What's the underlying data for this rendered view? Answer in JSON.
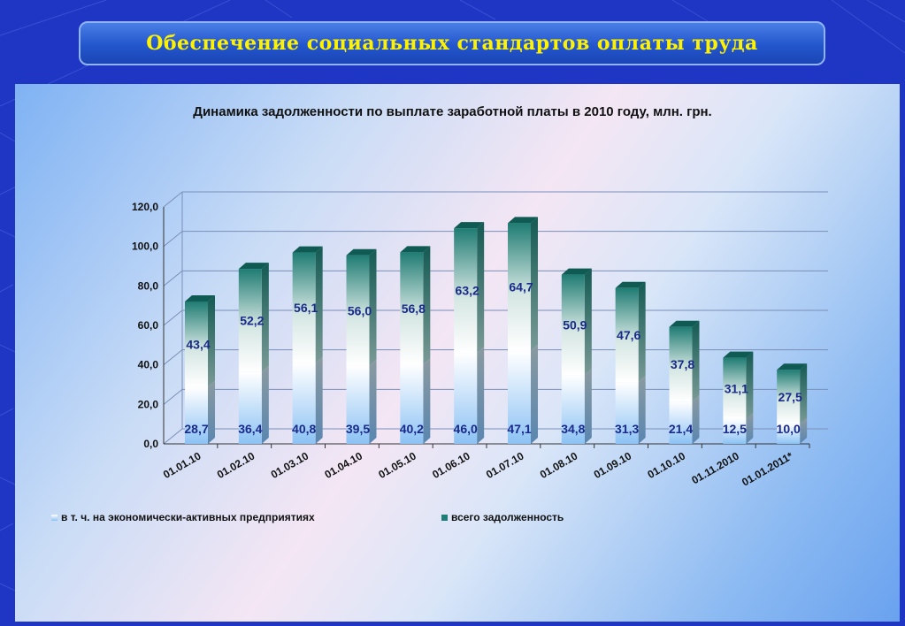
{
  "header": {
    "title": "Обеспечение социальных стандартов оплаты труда"
  },
  "chart_data": {
    "type": "bar",
    "title": "Динамика задолженности по выплате заработной платы в 2010 году, млн. грн.",
    "xlabel": "",
    "ylabel": "",
    "ylim": [
      0,
      120
    ],
    "yticks": [
      "0,0",
      "20,0",
      "40,0",
      "60,0",
      "80,0",
      "100,0",
      "120,0"
    ],
    "categories": [
      "01.01.10",
      "01.02.10",
      "01.03.10",
      "01.04.10",
      "01.05.10",
      "01.06.10",
      "01.07.10",
      "01.08.10",
      "01.09.10",
      "01.10.10",
      "01.11.2010",
      "01.01.2011*"
    ],
    "series": [
      {
        "name": "в т. ч. на экономически-активных предприятиях",
        "color": "#9ccaf4",
        "values": [
          28.7,
          36.4,
          40.8,
          39.5,
          40.2,
          46.0,
          47.1,
          34.8,
          31.3,
          21.4,
          12.5,
          10.0
        ],
        "labels": [
          "28,7",
          "36,4",
          "40,8",
          "39,5",
          "40,2",
          "46,0",
          "47,1",
          "34,8",
          "31,3",
          "21,4",
          "12,5",
          "10,0"
        ]
      },
      {
        "name": "всего задолженность",
        "color": "#1f7f76",
        "values": [
          72.1,
          88.6,
          96.9,
          95.5,
          97.0,
          109.2,
          111.8,
          85.7,
          78.9,
          59.2,
          43.6,
          37.5
        ],
        "labels": [
          "43,4",
          "52,2",
          "56,1",
          "56,0",
          "56,8",
          "63,2",
          "64,7",
          "50,9",
          "47,6",
          "37,8",
          "31,1",
          "27,5"
        ]
      }
    ],
    "grid": true,
    "legend_position": "bottom"
  }
}
